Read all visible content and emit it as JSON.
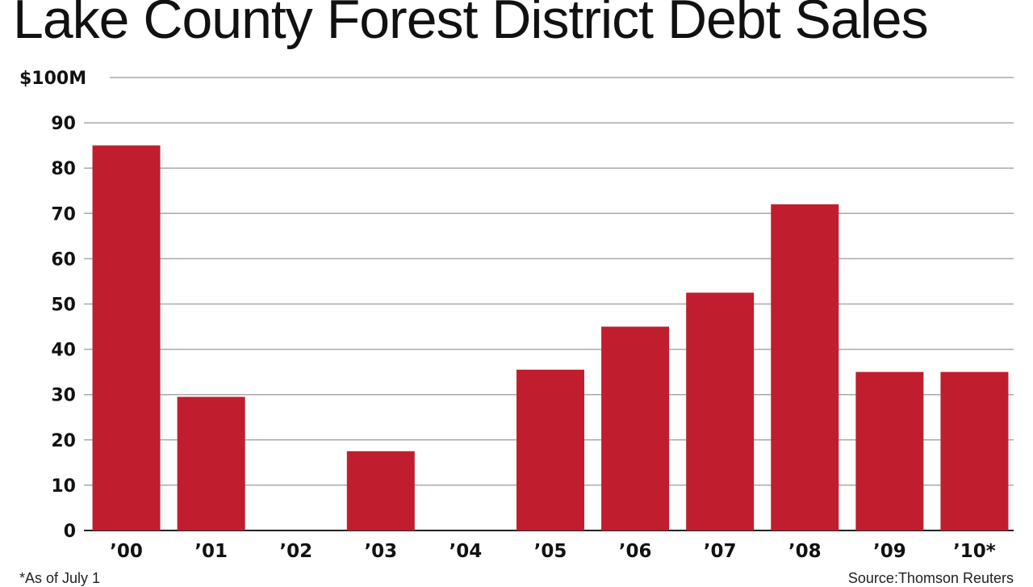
{
  "chart_data": {
    "type": "bar",
    "title": "Lake County Forest District Debt Sales",
    "categories": [
      "’00",
      "’01",
      "’02",
      "’03",
      "’04",
      "’05",
      "’06",
      "’07",
      "’08",
      "’09",
      "’10*"
    ],
    "values": [
      85,
      29.5,
      0,
      17.5,
      0,
      35.5,
      45,
      52.5,
      72,
      35,
      35
    ],
    "ylim": [
      0,
      100
    ],
    "yticks": [
      0,
      10,
      20,
      30,
      40,
      50,
      60,
      70,
      80,
      90,
      100
    ],
    "ytick_labels": [
      "0",
      "10",
      "20",
      "30",
      "40",
      "50",
      "60",
      "70",
      "80",
      "90",
      "$100M"
    ],
    "grid": true,
    "bar_color": "#c01e2e",
    "footnote": "*As of July 1",
    "source": "Source:Thomson Reuters"
  }
}
